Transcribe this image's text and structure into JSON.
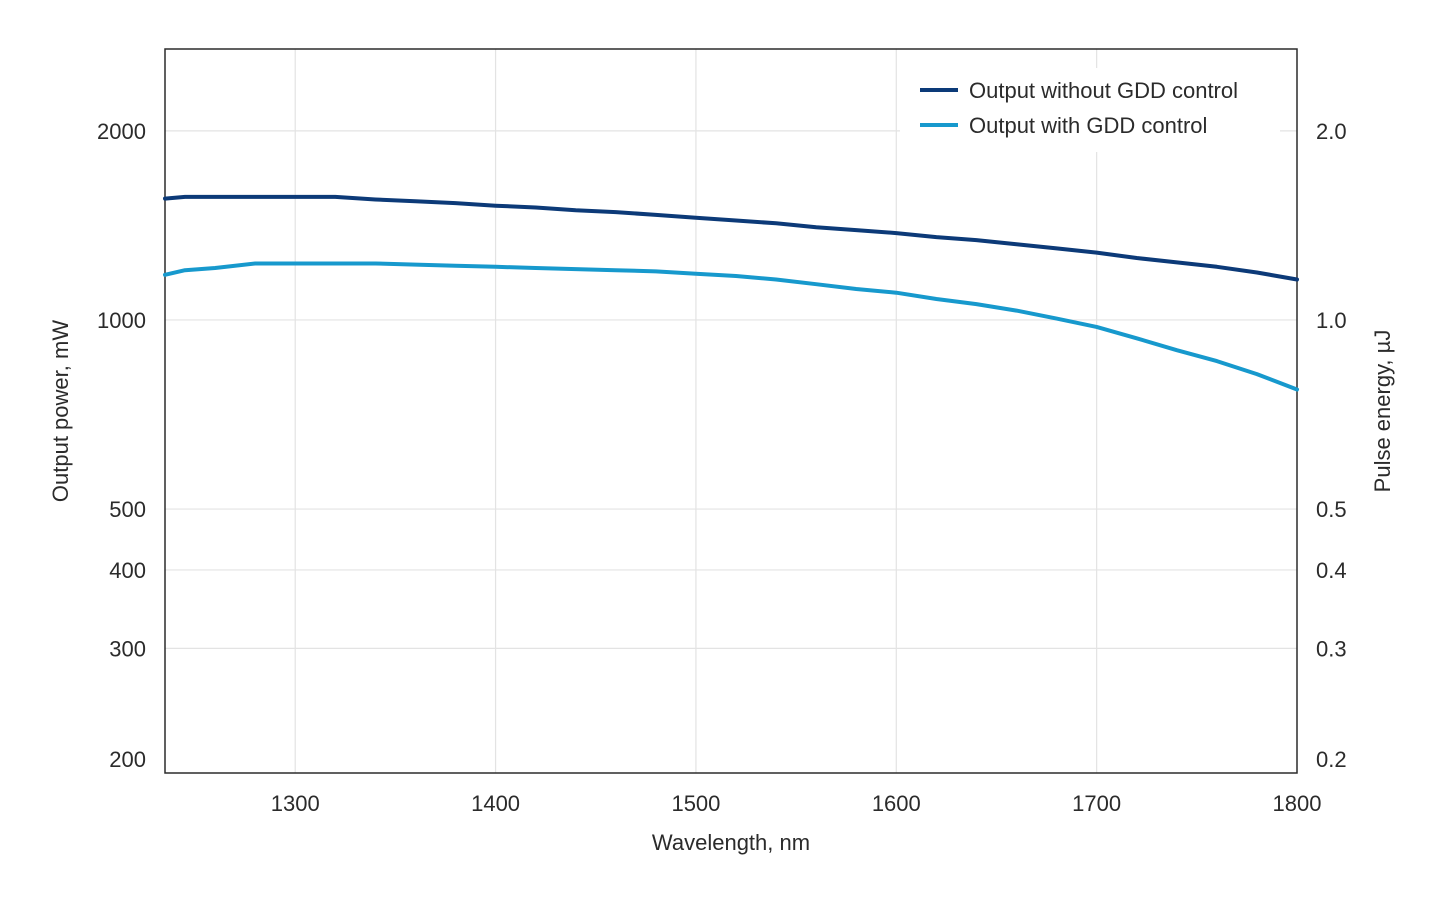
{
  "chart_data": {
    "type": "line",
    "xlabel": "Wavelength, nm",
    "ylabel": "Output power, mW",
    "y2label": "Pulse energy, µJ",
    "xlim": [
      1235,
      1800
    ],
    "ylim": [
      190,
      2700
    ],
    "y2lim": [
      0.19,
      2.7
    ],
    "yscale": "log",
    "grid": true,
    "legend_position": "top-right",
    "x_ticks": [
      {
        "value": 1300,
        "label": "1300"
      },
      {
        "value": 1400,
        "label": "1400"
      },
      {
        "value": 1500,
        "label": "1500"
      },
      {
        "value": 1600,
        "label": "1600"
      },
      {
        "value": 1700,
        "label": "1700"
      },
      {
        "value": 1800,
        "label": "1800"
      }
    ],
    "x_grid": [
      1300,
      1400,
      1500,
      1600,
      1700
    ],
    "y_ticks": [
      {
        "value": 2000,
        "label": "2000"
      },
      {
        "value": 1000,
        "label": "1000"
      },
      {
        "value": 500,
        "label": "500"
      },
      {
        "value": 400,
        "label": "400"
      },
      {
        "value": 300,
        "label": "300"
      },
      {
        "value": 200,
        "label": "200"
      }
    ],
    "y_grid": [
      2000,
      1000,
      500,
      400,
      300
    ],
    "y2_ticks": [
      {
        "value": 2.0,
        "label": "2.0"
      },
      {
        "value": 1.0,
        "label": "1.0"
      },
      {
        "value": 0.5,
        "label": "0.5"
      },
      {
        "value": 0.4,
        "label": "0.4"
      },
      {
        "value": 0.3,
        "label": "0.3"
      },
      {
        "value": 0.2,
        "label": "0.2"
      }
    ],
    "series": [
      {
        "name": "Output without GDD control",
        "color": "#0c3a78",
        "x": [
          1235,
          1245,
          1260,
          1280,
          1300,
          1320,
          1340,
          1360,
          1380,
          1400,
          1420,
          1440,
          1460,
          1480,
          1500,
          1520,
          1540,
          1560,
          1580,
          1600,
          1620,
          1640,
          1660,
          1680,
          1700,
          1720,
          1740,
          1760,
          1780,
          1800
        ],
        "y": [
          1560,
          1570,
          1570,
          1570,
          1570,
          1570,
          1555,
          1545,
          1535,
          1520,
          1510,
          1495,
          1485,
          1470,
          1455,
          1440,
          1425,
          1405,
          1390,
          1375,
          1355,
          1340,
          1320,
          1300,
          1280,
          1255,
          1235,
          1215,
          1190,
          1160
        ]
      },
      {
        "name": "Output with GDD control",
        "color": "#1799cd",
        "x": [
          1235,
          1245,
          1260,
          1280,
          1300,
          1320,
          1340,
          1360,
          1380,
          1400,
          1420,
          1440,
          1460,
          1480,
          1500,
          1520,
          1540,
          1560,
          1580,
          1600,
          1620,
          1640,
          1660,
          1680,
          1700,
          1720,
          1740,
          1760,
          1780,
          1800
        ],
        "y": [
          1180,
          1200,
          1210,
          1230,
          1230,
          1230,
          1230,
          1225,
          1220,
          1215,
          1210,
          1205,
          1200,
          1195,
          1185,
          1175,
          1160,
          1140,
          1120,
          1105,
          1080,
          1060,
          1035,
          1005,
          975,
          935,
          895,
          860,
          820,
          775
        ]
      }
    ]
  }
}
